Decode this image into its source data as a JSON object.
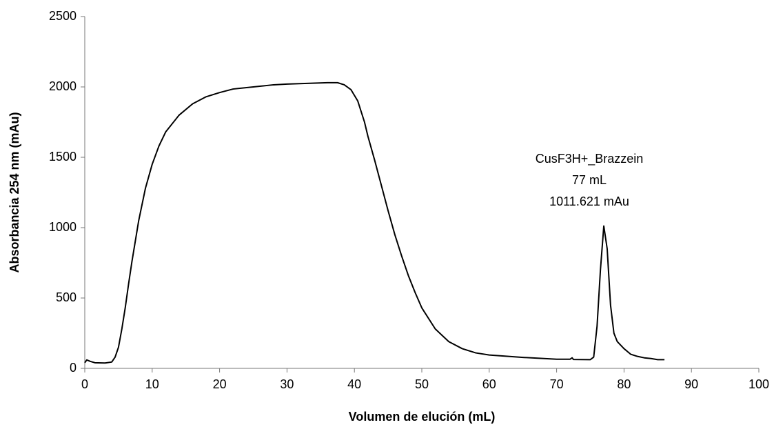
{
  "chart_data": {
    "type": "line",
    "x_label": "Volumen de elución (mL)",
    "y_label": "Absorbancia 254 nm (mAu)",
    "annotation": [
      "CusF3H+_Brazzein",
      "77 mL",
      "1011.621 mAu"
    ],
    "xlim": [
      0,
      100
    ],
    "xticks": [
      0,
      10,
      20,
      30,
      40,
      50,
      60,
      70,
      80,
      90,
      100
    ],
    "ylim": [
      0,
      2500
    ],
    "yticks": [
      0,
      500,
      1000,
      1500,
      2000,
      2500
    ],
    "grid": false,
    "series": [
      {
        "color": "#000000",
        "x": [
          0,
          0.3,
          0.8,
          1.5,
          3,
          4,
          4.5,
          5,
          5.5,
          6,
          6.5,
          7,
          8,
          9,
          10,
          11,
          12,
          14,
          16,
          18,
          20,
          22,
          25,
          28,
          30,
          33,
          36,
          37.5,
          38.5,
          39.5,
          40.5,
          41.5,
          42,
          43,
          44,
          45,
          46,
          47,
          48,
          49,
          50,
          52,
          54,
          56,
          58,
          60,
          65,
          70,
          72,
          72.3,
          72.5,
          75,
          75.5,
          76,
          76.5,
          77,
          77.5,
          78,
          78.5,
          79,
          80,
          81,
          82,
          83,
          84,
          85,
          86
        ],
        "values": [
          40,
          60,
          50,
          40,
          38,
          45,
          80,
          150,
          280,
          430,
          600,
          760,
          1050,
          1280,
          1450,
          1580,
          1680,
          1800,
          1880,
          1930,
          1960,
          1985,
          2000,
          2015,
          2020,
          2025,
          2030,
          2030,
          2015,
          1980,
          1900,
          1750,
          1650,
          1480,
          1300,
          1120,
          950,
          800,
          660,
          540,
          430,
          280,
          190,
          140,
          110,
          95,
          78,
          65,
          65,
          75,
          63,
          62,
          80,
          300,
          700,
          1011.621,
          850,
          450,
          250,
          190,
          140,
          100,
          85,
          75,
          70,
          62,
          62
        ]
      }
    ]
  }
}
